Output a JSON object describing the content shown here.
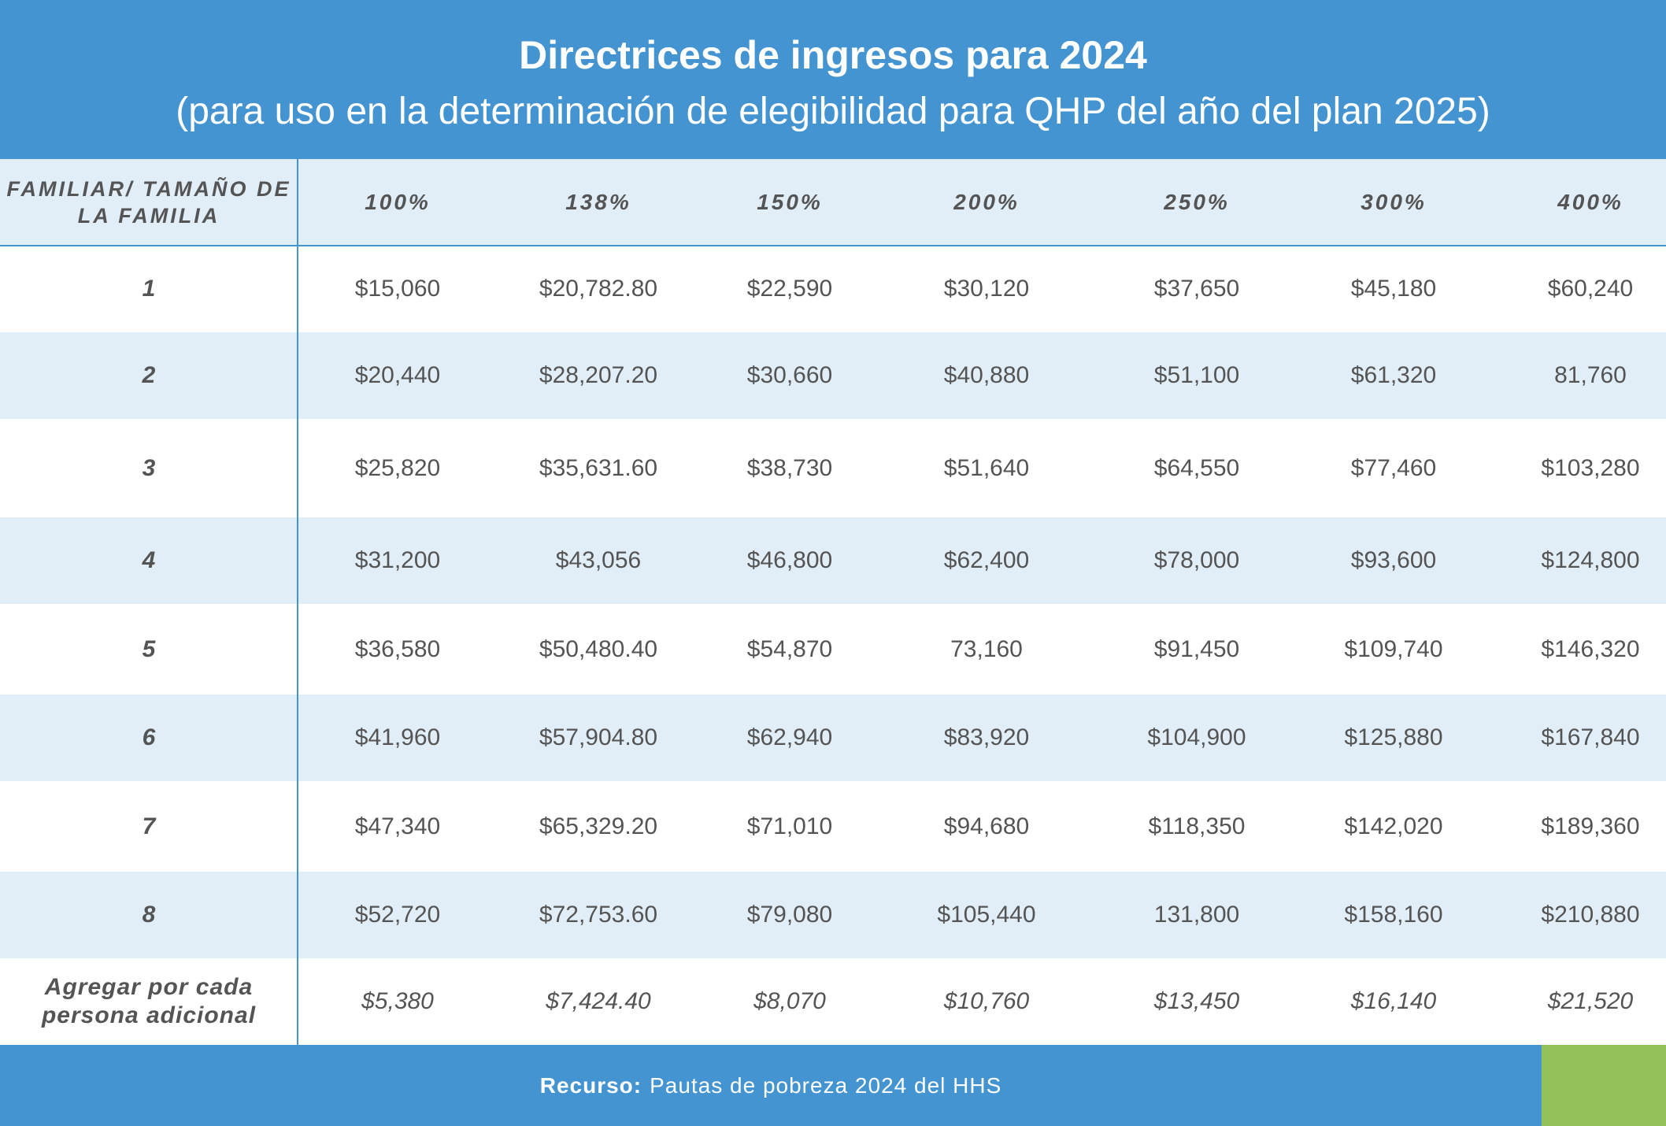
{
  "header": {
    "title": "Directrices de ingresos para 2024",
    "subtitle": "(para uso en la determinación de elegibilidad para QHP del año del plan 2025)"
  },
  "table": {
    "row_header": "FAMILIAR/ TAMAÑO DE LA FAMILIA",
    "columns": [
      "100%",
      "138%",
      "150%",
      "200%",
      "250%",
      "300%",
      "400%"
    ],
    "rows": [
      {
        "label": "1",
        "values": [
          "$15,060",
          "$20,782.80",
          "$22,590",
          "$30,120",
          "$37,650",
          "$45,180",
          "$60,240"
        ]
      },
      {
        "label": "2",
        "values": [
          "$20,440",
          "$28,207.20",
          "$30,660",
          "$40,880",
          "$51,100",
          "$61,320",
          "81,760"
        ]
      },
      {
        "label": "3",
        "values": [
          "$25,820",
          "$35,631.60",
          "$38,730",
          "$51,640",
          "$64,550",
          "$77,460",
          "$103,280"
        ]
      },
      {
        "label": "4",
        "values": [
          "$31,200",
          "$43,056",
          "$46,800",
          "$62,400",
          "$78,000",
          "$93,600",
          "$124,800"
        ]
      },
      {
        "label": "5",
        "values": [
          "$36,580",
          "$50,480.40",
          "$54,870",
          "73,160",
          "$91,450",
          "$109,740",
          "$146,320"
        ]
      },
      {
        "label": "6",
        "values": [
          "$41,960",
          "$57,904.80",
          "$62,940",
          "$83,920",
          "$104,900",
          "$125,880",
          "$167,840"
        ]
      },
      {
        "label": "7",
        "values": [
          "$47,340",
          "$65,329.20",
          "$71,010",
          "$94,680",
          "$118,350",
          "$142,020",
          "$189,360"
        ]
      },
      {
        "label": "8",
        "values": [
          "$52,720",
          "$72,753.60",
          "$79,080",
          "$105,440",
          "131,800",
          "$158,160",
          "$210,880"
        ]
      }
    ],
    "extra_row": {
      "label": "Agregar por cada persona adicional",
      "values": [
        "$5,380",
        "$7,424.40",
        "$8,070",
        "$10,760",
        "$13,450",
        "$16,140",
        "$21,520"
      ]
    }
  },
  "footer": {
    "label": "Recurso:",
    "text": "Pautas de pobreza 2024 del HHS"
  },
  "colors": {
    "primary_blue": "#4394d1",
    "row_shade": "#e1edf7",
    "accent_green": "#94c15a",
    "text": "#545454"
  }
}
